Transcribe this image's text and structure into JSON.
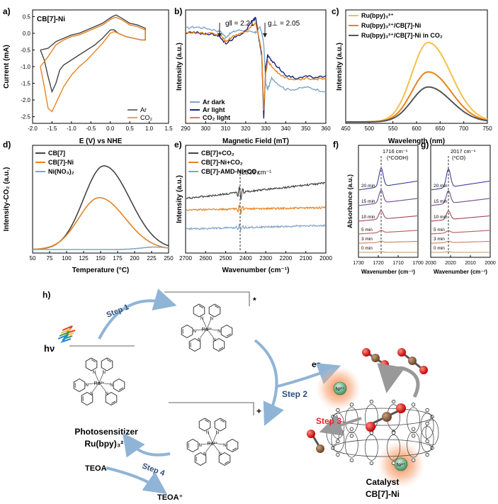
{
  "chart_data": [
    {
      "panel": "a)",
      "type": "line",
      "annotation": "CB[7]-Ni",
      "xlabel": "E (V) vs NHE",
      "ylabel": "Current (mA)",
      "xlim": [
        -2.0,
        1.5
      ],
      "ylim": [
        -2.7,
        0.7
      ],
      "xticks": [
        "-2.0",
        "-1.5",
        "-1.0",
        "-0.5",
        "0.0",
        "0.5",
        "1.0",
        "1.5"
      ],
      "yticks": [
        "0.5",
        "0.0",
        "-0.5",
        "-1.0",
        "-1.5",
        "-2.0",
        "-2.5"
      ],
      "legend": "bottom-right",
      "series": [
        {
          "name": "Ar",
          "color": "#444444",
          "x": [
            -1.8,
            -1.7,
            -1.6,
            -1.5,
            -1.4,
            -1.3,
            -1.2,
            -1.0,
            -0.8,
            -0.6,
            -0.4,
            -0.2,
            0.0,
            0.1,
            0.2,
            0.4,
            0.6,
            0.8,
            0.9,
            0.9,
            0.7,
            0.5,
            0.3,
            0.15,
            0.05,
            -0.2,
            -0.5,
            -0.8,
            -1.0,
            -1.2,
            -1.4,
            -1.6,
            -1.8
          ],
          "y": [
            -0.5,
            -0.8,
            -1.3,
            -1.75,
            -1.5,
            -1.1,
            -0.95,
            -0.8,
            -0.65,
            -0.5,
            -0.35,
            -0.15,
            0.1,
            0.1,
            0.0,
            -0.1,
            -0.15,
            -0.2,
            -0.2,
            0.15,
            0.25,
            0.3,
            0.45,
            0.55,
            0.5,
            0.3,
            0.15,
            0.0,
            -0.05,
            -0.15,
            -0.25,
            -0.45,
            -0.5
          ]
        },
        {
          "name": "CO₂",
          "color": "#e8821e",
          "x": [
            -1.8,
            -1.7,
            -1.6,
            -1.5,
            -1.4,
            -1.3,
            -1.2,
            -1.0,
            -0.8,
            -0.6,
            -0.4,
            -0.2,
            0.0,
            0.1,
            0.2,
            0.4,
            0.6,
            0.8,
            0.9,
            0.9,
            0.7,
            0.5,
            0.3,
            0.15,
            0.05,
            -0.2,
            -0.5,
            -0.8,
            -1.0,
            -1.2,
            -1.4,
            -1.6,
            -1.8
          ],
          "y": [
            -1.0,
            -1.6,
            -2.25,
            -2.35,
            -2.1,
            -1.85,
            -1.6,
            -1.25,
            -1.0,
            -0.8,
            -0.55,
            -0.3,
            0.0,
            0.05,
            0.0,
            -0.1,
            -0.15,
            -0.2,
            -0.2,
            0.1,
            0.2,
            0.25,
            0.4,
            0.48,
            0.45,
            0.25,
            0.1,
            -0.05,
            -0.1,
            -0.2,
            -0.35,
            -0.7,
            -1.0
          ]
        }
      ]
    },
    {
      "panel": "b)",
      "type": "line",
      "xlabel": "Magnetic Field (mT)",
      "ylabel": "Intensity (a.u.)",
      "xlim": [
        290,
        360
      ],
      "xticks": [
        "290",
        "300",
        "310",
        "320",
        "330",
        "340",
        "350",
        "360"
      ],
      "annotations": [
        "g‖ = 2.21",
        "g⊥ = 2.05"
      ],
      "legend": "bottom-left",
      "series": [
        {
          "name": "Ar dark",
          "color": "#7fa5c8",
          "x": [
            290,
            295,
            300,
            305,
            308,
            310,
            313,
            316,
            320,
            323,
            325,
            327,
            328,
            329,
            330,
            331,
            333,
            336,
            340,
            345,
            350,
            355,
            360
          ],
          "y": [
            0.84,
            0.85,
            0.84,
            0.82,
            0.8,
            0.76,
            0.8,
            0.82,
            0.82,
            0.8,
            0.8,
            0.85,
            0.8,
            0.7,
            0.35,
            0.3,
            0.4,
            0.35,
            0.3,
            0.3,
            0.32,
            0.3,
            0.28
          ]
        },
        {
          "name": "Ar light",
          "color": "#1a237e",
          "x": [
            290,
            295,
            300,
            305,
            308,
            310,
            313,
            316,
            320,
            323,
            325,
            327,
            328,
            329,
            330,
            331,
            333,
            336,
            340,
            345,
            350,
            355,
            360
          ],
          "y": [
            0.8,
            0.8,
            0.79,
            0.78,
            0.75,
            0.7,
            0.74,
            0.77,
            0.82,
            0.9,
            0.93,
            0.7,
            0.6,
            0.05,
            0.5,
            0.6,
            0.55,
            0.5,
            0.42,
            0.4,
            0.42,
            0.4,
            0.42
          ]
        },
        {
          "name": "CO₂ light",
          "color": "#e8821e",
          "x": [
            290,
            295,
            300,
            305,
            308,
            310,
            313,
            316,
            320,
            323,
            325,
            327,
            328,
            329,
            330,
            331,
            333,
            336,
            340,
            345,
            350,
            355,
            360
          ],
          "y": [
            0.8,
            0.8,
            0.79,
            0.79,
            0.77,
            0.72,
            0.76,
            0.78,
            0.8,
            0.86,
            0.88,
            0.72,
            0.62,
            0.12,
            0.45,
            0.55,
            0.5,
            0.45,
            0.4,
            0.38,
            0.4,
            0.39,
            0.4
          ]
        }
      ]
    },
    {
      "panel": "c)",
      "type": "line",
      "xlabel": "Wavelength (nm)",
      "ylabel": "Intensity (a.u.)",
      "xlim": [
        450,
        750
      ],
      "xticks": [
        "450",
        "500",
        "550",
        "600",
        "650",
        "700",
        "750"
      ],
      "legend": "top-left",
      "series": [
        {
          "name": "Ru(bpy)₃²⁺",
          "color": "#f3c04b"
        },
        {
          "name": "Ru(bpy)₃²⁺/CB[7]-Ni",
          "color": "#e8821e"
        },
        {
          "name": "Ru(bpy)₃²⁺/CB[7]-Ni in CO₂",
          "color": "#555555"
        }
      ],
      "peak_center": 625,
      "peak_heights": [
        1.0,
        0.63,
        0.44
      ]
    },
    {
      "panel": "d)",
      "type": "line",
      "xlabel": "Temperature (°C)",
      "ylabel": "Intensity-CO₂ (a.u.)",
      "xlim": [
        50,
        250
      ],
      "xticks": [
        "50",
        "75",
        "100",
        "125",
        "150",
        "175",
        "200",
        "225",
        "250"
      ],
      "legend": "top-left",
      "series": [
        {
          "name": "CB[7]",
          "color": "#444444",
          "peak": 155,
          "height": 1.0
        },
        {
          "name": "CB[7]-Ni",
          "color": "#e8821e",
          "peak": 148,
          "height": 0.62
        },
        {
          "name": "Ni(NO₃)₂",
          "color": "#7fa5c8",
          "peak": 230,
          "height": 0.03
        }
      ]
    },
    {
      "panel": "e)",
      "type": "line",
      "xlabel": "Wavenumber (cm⁻¹)",
      "ylabel": "Intensity (a.u.)",
      "xlim": [
        2700,
        2000
      ],
      "xticks": [
        "2700",
        "2600",
        "2500",
        "2400",
        "2300",
        "2200",
        "2100",
        "2000"
      ],
      "annotation": "2336 cm⁻¹",
      "legend": "top-left",
      "series": [
        {
          "name": "CB[7]+CO₂",
          "color": "#444444"
        },
        {
          "name": "CB[7]-Ni+CO₂",
          "color": "#e8821e"
        },
        {
          "name": "CB[7]-AMD-Ni+CO₂",
          "color": "#7fa5c8"
        }
      ]
    },
    {
      "panel": "f)",
      "type": "line",
      "xlabel": "Wavenumber (cm⁻¹)",
      "ylabel": "Absorbance (a.u.)",
      "xlim": [
        1730,
        1700
      ],
      "xticks": [
        "1730",
        "1720",
        "1710",
        "1700"
      ],
      "annotation": "1716 cm⁻¹",
      "annotation2": "(*COOH)",
      "times": [
        "0 min",
        "3 min",
        "5 min",
        "10 min",
        "15 min",
        "20 min"
      ]
    },
    {
      "panel": "g)",
      "type": "line",
      "xlabel": "Wavenumber (cm⁻¹)",
      "xlim": [
        2030,
        2000
      ],
      "xticks": [
        "2030",
        "2020",
        "2010",
        "2000"
      ],
      "annotation": "2017 cm⁻¹",
      "annotation2": "(*CO)",
      "times": [
        "0 min",
        "3 min",
        "5 min",
        "10 min",
        "15 min",
        "20 min"
      ]
    }
  ],
  "scheme": {
    "panel": "h)",
    "hv": "hν",
    "ru_label": "Ru²⁺",
    "step1": "Step 1",
    "step2": "Step 2",
    "step3": "Step 3",
    "step4": "Step 4",
    "electron": "e⁻",
    "star": "*",
    "plus": "+",
    "photosensitizer": "Photosensitizer",
    "photosensitizer_formula": "Ru(bpy)₃²⁺",
    "teoa": "TEOA",
    "teoa_plus": "TEOA⁺",
    "catalyst": "Catalyst",
    "catalyst_name": "CB[7]-Ni",
    "ni_label": "Ni²⁺",
    "colors": {
      "arrow": "#8fb4d6",
      "step_blue": "#2f4e7a",
      "step_red": "#e8252b",
      "glow": "#f47a3a"
    }
  }
}
